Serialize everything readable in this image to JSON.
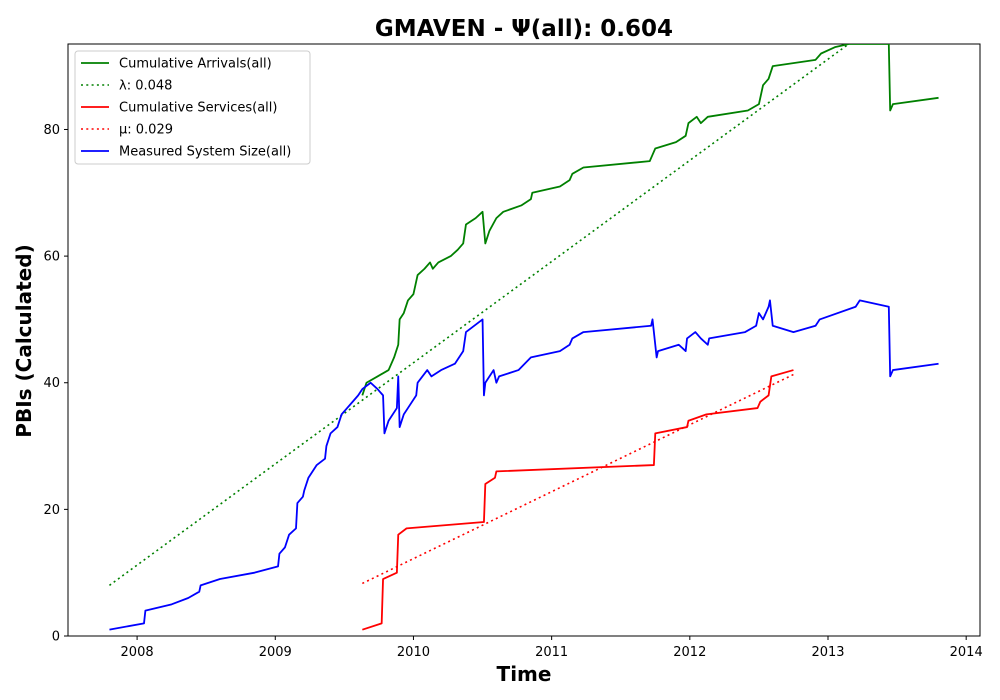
{
  "chart_data": {
    "type": "line",
    "title": "GMAVEN -  Ψ(all): 0.604",
    "xlabel": "Time",
    "ylabel": "PBIs (Calculated)",
    "xlim": [
      2007.5,
      2014.1
    ],
    "ylim": [
      0,
      93.5
    ],
    "x_ticks": [
      2008,
      2009,
      2010,
      2011,
      2012,
      2013,
      2014
    ],
    "x_tick_labels": [
      "2008",
      "2009",
      "2010",
      "2011",
      "2012",
      "2013",
      "2014"
    ],
    "y_ticks": [
      0,
      20,
      40,
      60,
      80
    ],
    "y_tick_labels": [
      "0",
      "20",
      "40",
      "60",
      "80"
    ],
    "grid": false,
    "legend_position": "top-left",
    "series": [
      {
        "name": "Cumulative Arrivals(all)",
        "color": "#008000",
        "style": "solid",
        "points": [
          [
            2009.63,
            38
          ],
          [
            2009.66,
            40
          ],
          [
            2009.74,
            41
          ],
          [
            2009.82,
            42
          ],
          [
            2009.86,
            44
          ],
          [
            2009.89,
            46
          ],
          [
            2009.9,
            50
          ],
          [
            2009.93,
            51
          ],
          [
            2009.96,
            53
          ],
          [
            2010.0,
            54
          ],
          [
            2010.03,
            57
          ],
          [
            2010.08,
            58
          ],
          [
            2010.12,
            59
          ],
          [
            2010.14,
            58
          ],
          [
            2010.18,
            59
          ],
          [
            2010.27,
            60
          ],
          [
            2010.32,
            61
          ],
          [
            2010.36,
            62
          ],
          [
            2010.38,
            65
          ],
          [
            2010.45,
            66
          ],
          [
            2010.5,
            67
          ],
          [
            2010.52,
            62
          ],
          [
            2010.55,
            64
          ],
          [
            2010.6,
            66
          ],
          [
            2010.65,
            67
          ],
          [
            2010.78,
            68
          ],
          [
            2010.85,
            69
          ],
          [
            2010.86,
            70
          ],
          [
            2011.06,
            71
          ],
          [
            2011.13,
            72
          ],
          [
            2011.15,
            73
          ],
          [
            2011.23,
            74
          ],
          [
            2011.71,
            75
          ],
          [
            2011.73,
            76
          ],
          [
            2011.75,
            77
          ],
          [
            2011.9,
            78
          ],
          [
            2011.97,
            79
          ],
          [
            2011.99,
            81
          ],
          [
            2012.05,
            82
          ],
          [
            2012.08,
            81
          ],
          [
            2012.13,
            82
          ],
          [
            2012.42,
            83
          ],
          [
            2012.5,
            84
          ],
          [
            2012.53,
            87
          ],
          [
            2012.57,
            88
          ],
          [
            2012.6,
            90
          ],
          [
            2012.91,
            91
          ],
          [
            2012.95,
            92
          ],
          [
            2013.05,
            93
          ],
          [
            2013.15,
            93.5
          ],
          [
            2013.44,
            93.5
          ],
          [
            2013.45,
            83
          ],
          [
            2013.47,
            84
          ],
          [
            2013.8,
            85
          ]
        ]
      },
      {
        "name": "λ: 0.048",
        "color": "#008000",
        "style": "dotted",
        "points": [
          [
            2007.8,
            8
          ],
          [
            2013.15,
            93.5
          ]
        ]
      },
      {
        "name": "Cumulative Services(all)",
        "color": "#ff0000",
        "style": "solid",
        "points": [
          [
            2009.63,
            1
          ],
          [
            2009.77,
            2
          ],
          [
            2009.78,
            9
          ],
          [
            2009.88,
            10
          ],
          [
            2009.89,
            16
          ],
          [
            2009.95,
            17
          ],
          [
            2010.51,
            18
          ],
          [
            2010.52,
            24
          ],
          [
            2010.59,
            25
          ],
          [
            2010.6,
            26
          ],
          [
            2011.74,
            27
          ],
          [
            2011.75,
            32
          ],
          [
            2011.98,
            33
          ],
          [
            2011.99,
            34
          ],
          [
            2012.12,
            35
          ],
          [
            2012.49,
            36
          ],
          [
            2012.51,
            37
          ],
          [
            2012.57,
            38
          ],
          [
            2012.59,
            41
          ],
          [
            2012.75,
            42
          ]
        ]
      },
      {
        "name": "μ: 0.029",
        "color": "#ff0000",
        "style": "dotted",
        "points": [
          [
            2009.63,
            8.3
          ],
          [
            2012.75,
            41.3
          ]
        ]
      },
      {
        "name": "Measured System Size(all)",
        "color": "#0000ff",
        "style": "solid",
        "points": [
          [
            2007.8,
            1
          ],
          [
            2008.05,
            2
          ],
          [
            2008.06,
            4
          ],
          [
            2008.25,
            5
          ],
          [
            2008.37,
            6
          ],
          [
            2008.45,
            7
          ],
          [
            2008.46,
            8
          ],
          [
            2008.6,
            9
          ],
          [
            2008.85,
            10
          ],
          [
            2009.02,
            11
          ],
          [
            2009.03,
            13
          ],
          [
            2009.07,
            14
          ],
          [
            2009.1,
            16
          ],
          [
            2009.15,
            17
          ],
          [
            2009.16,
            21
          ],
          [
            2009.2,
            22
          ],
          [
            2009.21,
            23
          ],
          [
            2009.24,
            25
          ],
          [
            2009.3,
            27
          ],
          [
            2009.36,
            28
          ],
          [
            2009.37,
            30
          ],
          [
            2009.4,
            32
          ],
          [
            2009.45,
            33
          ],
          [
            2009.48,
            35
          ],
          [
            2009.52,
            36
          ],
          [
            2009.56,
            37
          ],
          [
            2009.6,
            38
          ],
          [
            2009.63,
            39
          ],
          [
            2009.69,
            40
          ],
          [
            2009.74,
            39
          ],
          [
            2009.78,
            38
          ],
          [
            2009.79,
            32
          ],
          [
            2009.82,
            34
          ],
          [
            2009.88,
            36
          ],
          [
            2009.89,
            41
          ],
          [
            2009.9,
            33
          ],
          [
            2009.93,
            35
          ],
          [
            2009.96,
            36
          ],
          [
            2010.02,
            38
          ],
          [
            2010.03,
            40
          ],
          [
            2010.1,
            42
          ],
          [
            2010.13,
            41
          ],
          [
            2010.2,
            42
          ],
          [
            2010.3,
            43
          ],
          [
            2010.36,
            45
          ],
          [
            2010.38,
            48
          ],
          [
            2010.5,
            50
          ],
          [
            2010.51,
            38
          ],
          [
            2010.52,
            40
          ],
          [
            2010.58,
            42
          ],
          [
            2010.6,
            40
          ],
          [
            2010.62,
            41
          ],
          [
            2010.76,
            42
          ],
          [
            2010.85,
            44
          ],
          [
            2011.06,
            45
          ],
          [
            2011.13,
            46
          ],
          [
            2011.15,
            47
          ],
          [
            2011.23,
            48
          ],
          [
            2011.72,
            49
          ],
          [
            2011.73,
            50
          ],
          [
            2011.76,
            44
          ],
          [
            2011.77,
            45
          ],
          [
            2011.92,
            46
          ],
          [
            2011.97,
            45
          ],
          [
            2011.98,
            47
          ],
          [
            2012.04,
            48
          ],
          [
            2012.08,
            47
          ],
          [
            2012.13,
            46
          ],
          [
            2012.14,
            47
          ],
          [
            2012.4,
            48
          ],
          [
            2012.48,
            49
          ],
          [
            2012.5,
            51
          ],
          [
            2012.53,
            50
          ],
          [
            2012.57,
            52
          ],
          [
            2012.58,
            53
          ],
          [
            2012.6,
            49
          ],
          [
            2012.75,
            48
          ],
          [
            2012.91,
            49
          ],
          [
            2012.94,
            50
          ],
          [
            2013.2,
            52
          ],
          [
            2013.23,
            53
          ],
          [
            2013.44,
            52
          ],
          [
            2013.45,
            41
          ],
          [
            2013.47,
            42
          ],
          [
            2013.8,
            43
          ]
        ]
      }
    ]
  }
}
